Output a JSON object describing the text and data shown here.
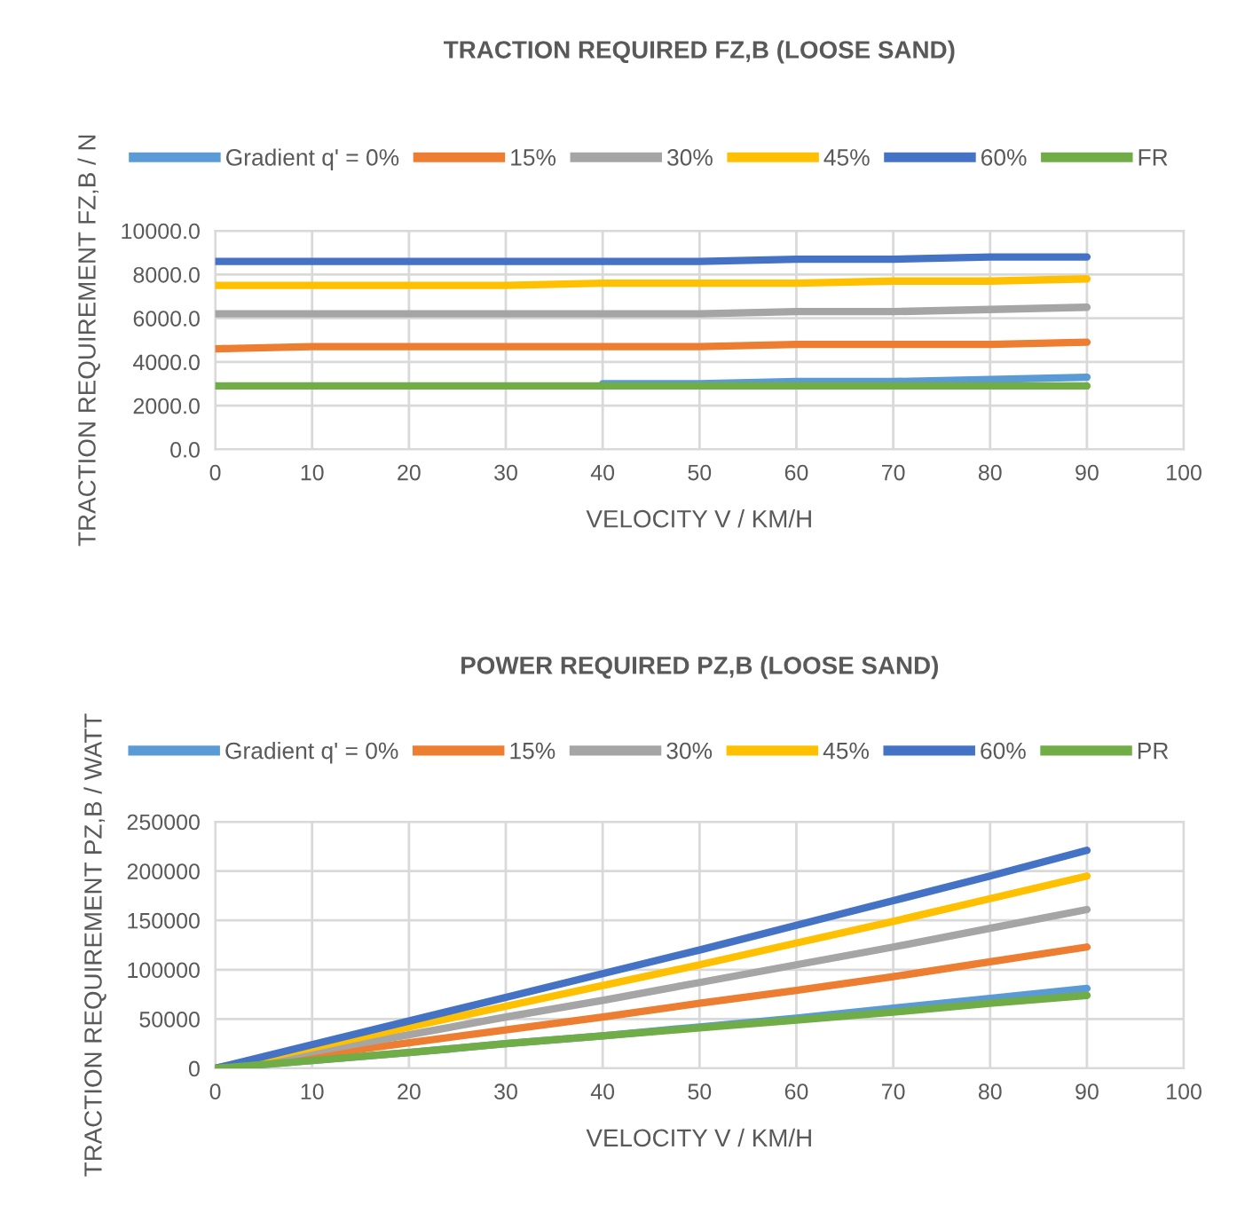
{
  "chart_data": [
    {
      "type": "line",
      "title": "TRACTION REQUIRED FZ,B (LOOSE SAND)",
      "xlabel": "VELOCITY V / KM/H",
      "ylabel": "TRACTION REQUIREMENT FZ,B / N",
      "x": [
        0,
        10,
        20,
        30,
        40,
        50,
        60,
        70,
        80,
        90
      ],
      "series": [
        {
          "name": "Gradient q' = 0%",
          "color": "#5b9bd5",
          "values": [
            null,
            null,
            null,
            null,
            3000,
            3000,
            3100,
            3100,
            3200,
            3300
          ]
        },
        {
          "name": "15%",
          "color": "#ed7d31",
          "values": [
            4600,
            4700,
            4700,
            4700,
            4700,
            4700,
            4800,
            4800,
            4800,
            4900
          ]
        },
        {
          "name": "30%",
          "color": "#a5a5a5",
          "values": [
            6200,
            6200,
            6200,
            6200,
            6200,
            6200,
            6300,
            6300,
            6400,
            6500
          ]
        },
        {
          "name": "45%",
          "color": "#ffc000",
          "values": [
            7500,
            7500,
            7500,
            7500,
            7600,
            7600,
            7600,
            7700,
            7700,
            7800
          ]
        },
        {
          "name": "60%",
          "color": "#4472c4",
          "values": [
            8600,
            8600,
            8600,
            8600,
            8600,
            8600,
            8700,
            8700,
            8800,
            8800
          ]
        },
        {
          "name": "FR",
          "color": "#70ad47",
          "values": [
            2900,
            2900,
            2900,
            2900,
            2900,
            2900,
            2900,
            2900,
            2900,
            2900
          ]
        }
      ],
      "xlim": [
        0,
        100
      ],
      "xticks": [
        0,
        10,
        20,
        30,
        40,
        50,
        60,
        70,
        80,
        90,
        100
      ],
      "ylim": [
        0,
        10000
      ],
      "yticks": [
        {
          "value": 0,
          "label": "0.0"
        },
        {
          "value": 2000,
          "label": "2000.0"
        },
        {
          "value": 4000,
          "label": "4000.0"
        },
        {
          "value": 6000,
          "label": "6000.0"
        },
        {
          "value": 8000,
          "label": "8000.0"
        },
        {
          "value": 10000,
          "label": "10000.0"
        }
      ],
      "grid": true,
      "legend": "top",
      "marker": "none",
      "line_style": "solid"
    },
    {
      "type": "line",
      "title": "POWER REQUIRED PZ,B (LOOSE SAND)",
      "xlabel": "VELOCITY V / KM/H",
      "ylabel": "TRACTION REQUIREMENT PZ,B / WATT",
      "x": [
        0,
        10,
        20,
        30,
        40,
        50,
        60,
        70,
        80,
        90
      ],
      "series": [
        {
          "name": "Gradient q' = 0%",
          "color": "#5b9bd5",
          "values": [
            0,
            8000,
            16000,
            25000,
            33000,
            42000,
            51000,
            61000,
            71000,
            81000
          ]
        },
        {
          "name": "15%",
          "color": "#ed7d31",
          "values": [
            0,
            13000,
            26000,
            39000,
            52000,
            66000,
            79000,
            93000,
            108000,
            123000
          ]
        },
        {
          "name": "30%",
          "color": "#a5a5a5",
          "values": [
            0,
            17000,
            34000,
            52000,
            69000,
            87000,
            105000,
            123000,
            142000,
            161000
          ]
        },
        {
          "name": "45%",
          "color": "#ffc000",
          "values": [
            0,
            21000,
            42000,
            63000,
            84000,
            105000,
            127000,
            149000,
            172000,
            195000
          ]
        },
        {
          "name": "60%",
          "color": "#4472c4",
          "values": [
            0,
            24000,
            48000,
            72000,
            96000,
            120000,
            145000,
            170000,
            195000,
            221000
          ]
        },
        {
          "name": "PR",
          "color": "#70ad47",
          "values": [
            0,
            8000,
            16000,
            25000,
            33000,
            41000,
            49000,
            57000,
            66000,
            74000
          ]
        }
      ],
      "xlim": [
        0,
        100
      ],
      "xticks": [
        0,
        10,
        20,
        30,
        40,
        50,
        60,
        70,
        80,
        90,
        100
      ],
      "ylim": [
        0,
        250000
      ],
      "yticks": [
        0,
        50000,
        100000,
        150000,
        200000,
        250000
      ],
      "grid": true,
      "legend": "top",
      "marker": "none",
      "line_style": "solid"
    }
  ]
}
